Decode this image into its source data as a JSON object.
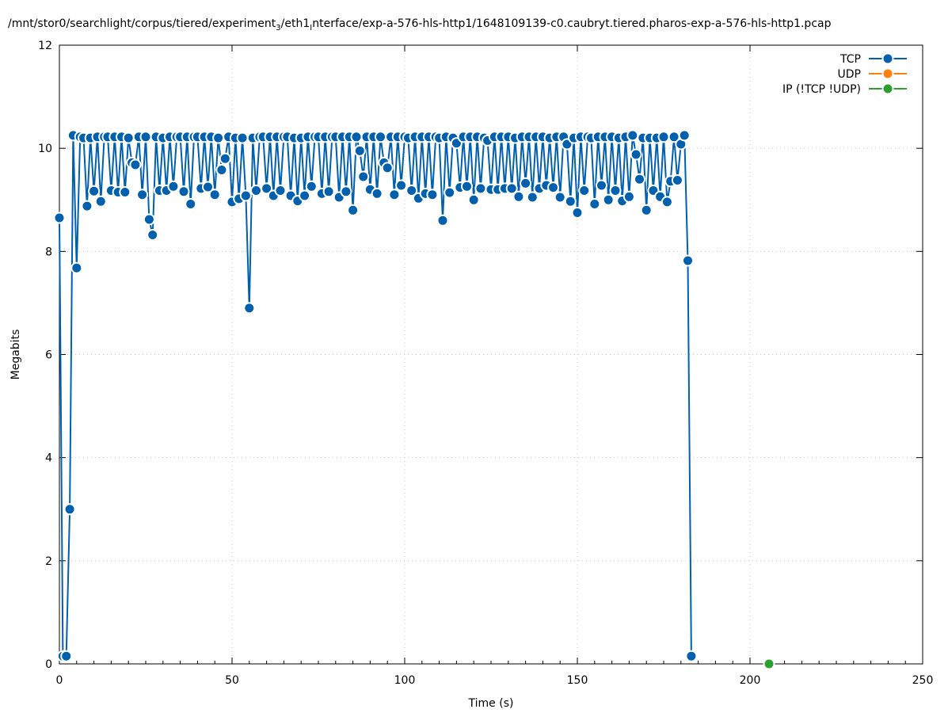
{
  "chart_data": {
    "type": "line",
    "title_parts": [
      "/mnt/stor0/searchlight/corpus/tiered/experiment",
      "3",
      "/eth1",
      "I",
      "nterface/exp-a-576-hls-http1/1648109139-c0.caubryt.tiered.pharos-exp-a-576-hls-http1.pcap"
    ],
    "xlabel": "Time (s)",
    "ylabel": "Megabits",
    "xlim": [
      0,
      250
    ],
    "ylim": [
      0,
      12
    ],
    "x_ticks": [
      0,
      50,
      100,
      150,
      200,
      250
    ],
    "y_ticks": [
      0,
      2,
      4,
      6,
      8,
      10,
      12
    ],
    "grid": true,
    "legend_position": "top-right",
    "series": [
      {
        "name": "TCP",
        "color": "#0060ad",
        "points": [
          [
            0,
            8.65
          ],
          [
            1,
            0.15
          ],
          [
            2,
            0.15
          ],
          [
            3,
            3.0
          ],
          [
            4,
            10.25
          ],
          [
            5,
            7.68
          ],
          [
            6,
            10.22
          ],
          [
            7,
            10.2
          ],
          [
            8,
            8.88
          ],
          [
            9,
            10.2
          ],
          [
            10,
            9.17
          ],
          [
            11,
            10.22
          ],
          [
            12,
            8.97
          ],
          [
            13,
            10.22
          ],
          [
            14,
            10.22
          ],
          [
            15,
            9.18
          ],
          [
            16,
            10.22
          ],
          [
            17,
            9.15
          ],
          [
            18,
            10.22
          ],
          [
            19,
            9.15
          ],
          [
            20,
            10.2
          ],
          [
            21,
            9.72
          ],
          [
            22,
            9.68
          ],
          [
            23,
            10.22
          ],
          [
            24,
            9.1
          ],
          [
            25,
            10.22
          ],
          [
            26,
            8.62
          ],
          [
            27,
            8.32
          ],
          [
            28,
            10.22
          ],
          [
            29,
            9.18
          ],
          [
            30,
            10.2
          ],
          [
            31,
            9.18
          ],
          [
            32,
            10.22
          ],
          [
            33,
            9.26
          ],
          [
            34,
            10.22
          ],
          [
            35,
            10.22
          ],
          [
            36,
            9.16
          ],
          [
            37,
            10.22
          ],
          [
            38,
            8.92
          ],
          [
            39,
            10.22
          ],
          [
            40,
            10.22
          ],
          [
            41,
            9.22
          ],
          [
            42,
            10.22
          ],
          [
            43,
            9.25
          ],
          [
            44,
            10.22
          ],
          [
            45,
            9.1
          ],
          [
            46,
            10.2
          ],
          [
            47,
            9.58
          ],
          [
            48,
            9.8
          ],
          [
            49,
            10.22
          ],
          [
            50,
            8.96
          ],
          [
            51,
            10.2
          ],
          [
            52,
            9.02
          ],
          [
            53,
            10.2
          ],
          [
            54,
            9.08
          ],
          [
            55,
            6.9
          ],
          [
            56,
            10.2
          ],
          [
            57,
            9.18
          ],
          [
            58,
            10.22
          ],
          [
            59,
            10.22
          ],
          [
            60,
            9.22
          ],
          [
            61,
            10.22
          ],
          [
            62,
            9.08
          ],
          [
            63,
            10.22
          ],
          [
            64,
            9.18
          ],
          [
            65,
            10.22
          ],
          [
            66,
            10.22
          ],
          [
            67,
            9.08
          ],
          [
            68,
            10.2
          ],
          [
            69,
            8.98
          ],
          [
            70,
            10.2
          ],
          [
            71,
            9.08
          ],
          [
            72,
            10.22
          ],
          [
            73,
            9.26
          ],
          [
            74,
            10.22
          ],
          [
            75,
            10.22
          ],
          [
            76,
            9.12
          ],
          [
            77,
            10.22
          ],
          [
            78,
            9.16
          ],
          [
            79,
            10.22
          ],
          [
            80,
            10.22
          ],
          [
            81,
            9.05
          ],
          [
            82,
            10.22
          ],
          [
            83,
            9.16
          ],
          [
            84,
            10.22
          ],
          [
            85,
            8.8
          ],
          [
            86,
            10.22
          ],
          [
            87,
            9.95
          ],
          [
            88,
            9.45
          ],
          [
            89,
            10.22
          ],
          [
            90,
            9.2
          ],
          [
            91,
            10.22
          ],
          [
            92,
            9.12
          ],
          [
            93,
            10.22
          ],
          [
            94,
            9.72
          ],
          [
            95,
            9.62
          ],
          [
            96,
            10.22
          ],
          [
            97,
            9.1
          ],
          [
            98,
            10.22
          ],
          [
            99,
            9.28
          ],
          [
            100,
            10.22
          ],
          [
            101,
            10.2
          ],
          [
            102,
            9.18
          ],
          [
            103,
            10.22
          ],
          [
            104,
            9.03
          ],
          [
            105,
            10.22
          ],
          [
            106,
            9.12
          ],
          [
            107,
            10.22
          ],
          [
            108,
            9.1
          ],
          [
            109,
            10.22
          ],
          [
            110,
            10.2
          ],
          [
            111,
            8.6
          ],
          [
            112,
            10.22
          ],
          [
            113,
            9.14
          ],
          [
            114,
            10.2
          ],
          [
            115,
            10.1
          ],
          [
            116,
            9.24
          ],
          [
            117,
            10.22
          ],
          [
            118,
            9.26
          ],
          [
            119,
            10.22
          ],
          [
            120,
            9.0
          ],
          [
            121,
            10.22
          ],
          [
            122,
            9.22
          ],
          [
            123,
            10.2
          ],
          [
            124,
            10.15
          ],
          [
            125,
            9.2
          ],
          [
            126,
            10.22
          ],
          [
            127,
            9.2
          ],
          [
            128,
            10.22
          ],
          [
            129,
            9.22
          ],
          [
            130,
            10.22
          ],
          [
            131,
            9.22
          ],
          [
            132,
            10.2
          ],
          [
            133,
            9.06
          ],
          [
            134,
            10.22
          ],
          [
            135,
            9.32
          ],
          [
            136,
            10.22
          ],
          [
            137,
            9.05
          ],
          [
            138,
            10.22
          ],
          [
            139,
            9.22
          ],
          [
            140,
            10.22
          ],
          [
            141,
            9.28
          ],
          [
            142,
            10.2
          ],
          [
            143,
            9.24
          ],
          [
            144,
            10.22
          ],
          [
            145,
            9.05
          ],
          [
            146,
            10.22
          ],
          [
            147,
            10.08
          ],
          [
            148,
            8.97
          ],
          [
            149,
            10.2
          ],
          [
            150,
            8.75
          ],
          [
            151,
            10.22
          ],
          [
            152,
            9.18
          ],
          [
            153,
            10.22
          ],
          [
            154,
            10.2
          ],
          [
            155,
            8.92
          ],
          [
            156,
            10.22
          ],
          [
            157,
            9.28
          ],
          [
            158,
            10.22
          ],
          [
            159,
            9.0
          ],
          [
            160,
            10.22
          ],
          [
            161,
            9.18
          ],
          [
            162,
            10.2
          ],
          [
            163,
            8.98
          ],
          [
            164,
            10.22
          ],
          [
            165,
            9.06
          ],
          [
            166,
            10.25
          ],
          [
            167,
            9.88
          ],
          [
            168,
            9.4
          ],
          [
            169,
            10.2
          ],
          [
            170,
            8.8
          ],
          [
            171,
            10.2
          ],
          [
            172,
            9.18
          ],
          [
            173,
            10.2
          ],
          [
            174,
            9.06
          ],
          [
            175,
            10.22
          ],
          [
            176,
            8.96
          ],
          [
            177,
            9.36
          ],
          [
            178,
            10.22
          ],
          [
            179,
            9.38
          ],
          [
            180,
            10.08
          ],
          [
            181,
            10.25
          ],
          [
            182,
            7.82
          ],
          [
            183,
            0.15
          ]
        ]
      },
      {
        "name": "UDP",
        "color": "#ff7f0e",
        "points": []
      },
      {
        "name": "IP (!TCP  !UDP)",
        "color": "#2ca02c",
        "points": [
          [
            205.5,
            0.0
          ]
        ]
      }
    ]
  }
}
